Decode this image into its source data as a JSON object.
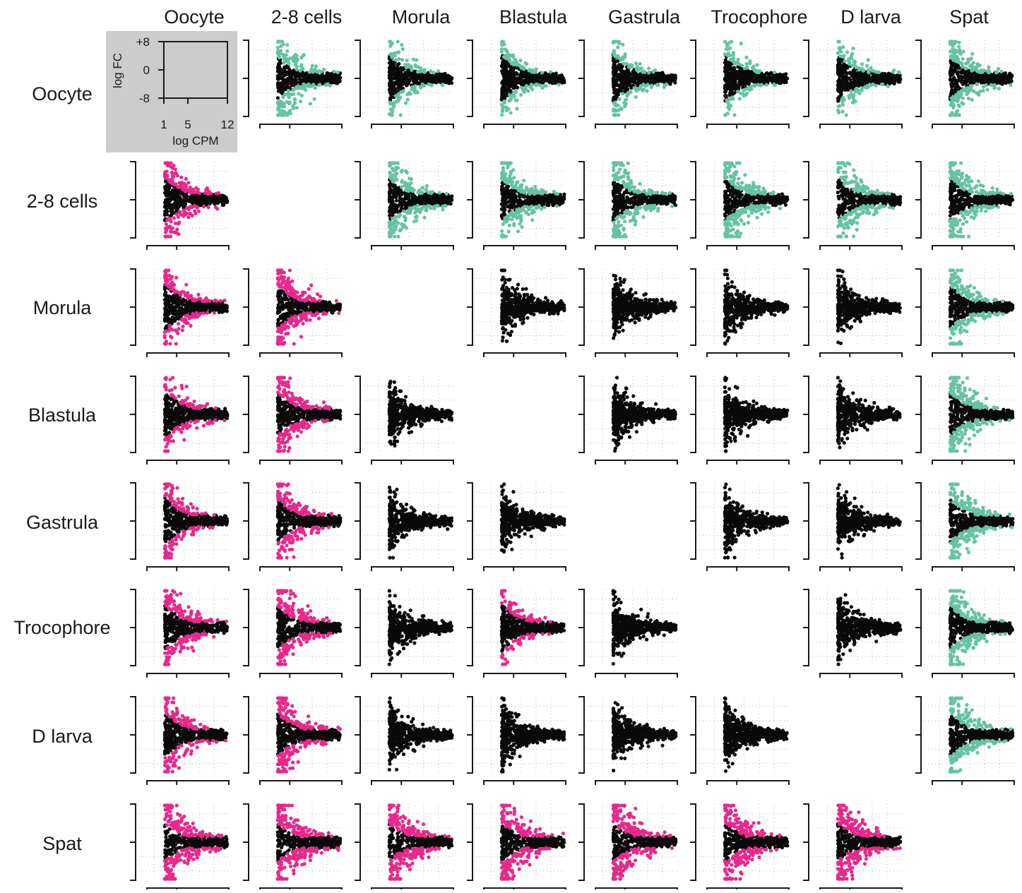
{
  "chart_data": {
    "type": "scatter",
    "subtype": "MA-plot matrix (pairwise comparisons between developmental stages)",
    "stages": [
      "Oocyte",
      "2-8 cells",
      "Morula",
      "Blastula",
      "Gastrula",
      "Trocophore",
      "D larva",
      "Spat"
    ],
    "legend_panel": {
      "xlabel": "log CPM",
      "ylabel": "log FC",
      "x_ticks": [
        "1",
        "5",
        "12"
      ],
      "y_ticks": [
        "+8",
        "0",
        "-8"
      ],
      "xlim": [
        1,
        12
      ],
      "ylim": [
        -8,
        8
      ]
    },
    "colors": {
      "not_significant": "#0a0a0a",
      "upper_triangle_significant": "#66c2a5",
      "lower_triangle_significant": "#e7298a",
      "legend_background": "#cccccc",
      "grid": "#b8b8b8"
    },
    "grid": true,
    "significance": [
      [
        0,
        4,
        1,
        1,
        1,
        1,
        1,
        4
      ],
      [
        3,
        0,
        4,
        4,
        4,
        4,
        4,
        4
      ],
      [
        2,
        4,
        0,
        0,
        0,
        0,
        0,
        4
      ],
      [
        1,
        4,
        0,
        0,
        0,
        0,
        0,
        4
      ],
      [
        2,
        4,
        0,
        0,
        0,
        0,
        0,
        4
      ],
      [
        3,
        4,
        0,
        1,
        0,
        0,
        0,
        4
      ],
      [
        3,
        4,
        0,
        0,
        0,
        0,
        0,
        4
      ],
      [
        5,
        5,
        5,
        5,
        5,
        5,
        5,
        0
      ]
    ]
  }
}
